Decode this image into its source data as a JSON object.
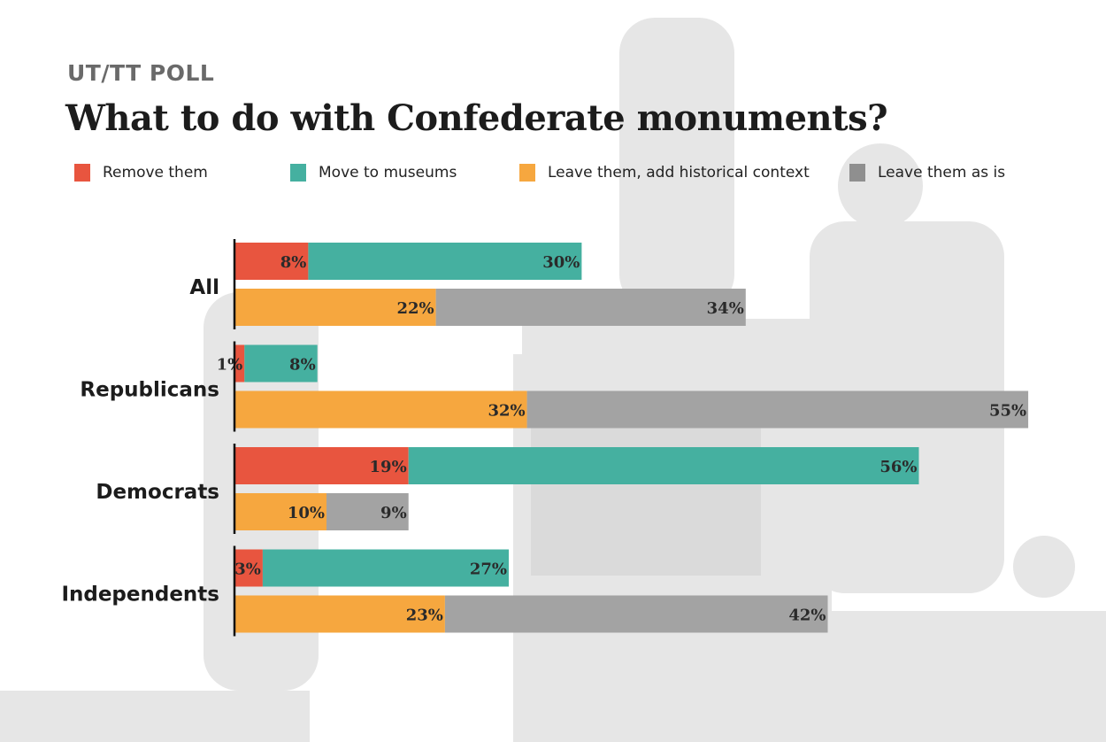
{
  "kicker": "UT/TT POLL",
  "title": "What to do with Confederate monuments?",
  "chart_data": {
    "type": "bar",
    "orientation": "horizontal-stacked",
    "title": "What to do with Confederate monuments?",
    "categories": [
      "All",
      "Republicans",
      "Democrats",
      "Independents"
    ],
    "series": [
      {
        "name": "Remove them",
        "color": "#e8553f",
        "row": 1,
        "values": [
          8,
          1,
          19,
          3
        ]
      },
      {
        "name": "Move to museums",
        "color": "#45b0a0",
        "row": 1,
        "values": [
          30,
          8,
          56,
          27
        ]
      },
      {
        "name": "Leave them, add historical context",
        "color": "#f6a73f",
        "row": 2,
        "values": [
          22,
          32,
          10,
          23
        ]
      },
      {
        "name": "Leave them as is",
        "color": "#a3a3a3",
        "row": 2,
        "values": [
          34,
          55,
          9,
          42
        ]
      }
    ],
    "value_suffix": "%",
    "legend": "top",
    "grid": false
  }
}
